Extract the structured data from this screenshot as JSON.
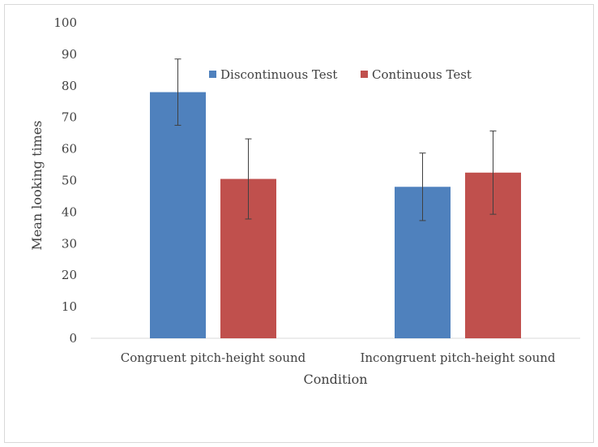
{
  "chart_data": {
    "type": "bar",
    "categories": [
      "Congruent pitch-height sound",
      "Incongruent pitch-height sound"
    ],
    "series": [
      {
        "name": "Discontinuous Test",
        "values": [
          78,
          48
        ],
        "error": [
          10.5,
          10.7
        ],
        "color": "#4f81bd"
      },
      {
        "name": "Continuous Test",
        "values": [
          50.5,
          52.5
        ],
        "error": [
          12.7,
          13.2
        ],
        "color": "#c0504d"
      }
    ],
    "title": "",
    "xlabel": "Condition",
    "ylabel": "Mean looking times",
    "ylim": [
      0,
      100
    ],
    "yticks": [
      0,
      10,
      20,
      30,
      40,
      50,
      60,
      70,
      80,
      90,
      100
    ],
    "grid": false,
    "legend": "top-right",
    "axis_color": "#d9d9d9",
    "error_bar_color": "#404040"
  }
}
